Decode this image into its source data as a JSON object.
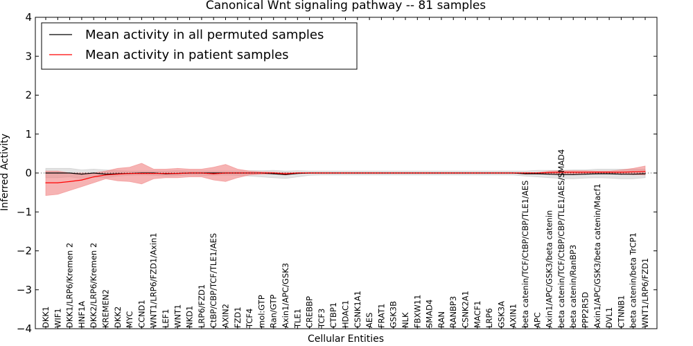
{
  "chart_data": {
    "type": "line",
    "title": "Canonical Wnt signaling pathway -- 81 samples",
    "xlabel": "Cellular Entities",
    "ylabel": "Inferred Activity",
    "ylim": [
      -4,
      4
    ],
    "yticks": [
      -4,
      -3,
      -2,
      -1,
      0,
      1,
      2,
      3,
      4
    ],
    "ytick_labels": [
      "−4",
      "−3",
      "−2",
      "−1",
      "0",
      "1",
      "2",
      "3",
      "4"
    ],
    "legend_position": "top-left",
    "categories": [
      "DKK1",
      "WIF1",
      "DKK1/LRP6/Kremen 2",
      "HNF1A",
      "DKK2/LRP6/Kremen 2",
      "KREMEN2",
      "DKK2",
      "MYC",
      "CCND1",
      "WNT1/LRP6/FZD1/Axin1",
      "LEF1",
      "WNT1",
      "NKD1",
      "LRP6/FZD1",
      "CtBP/CBP/TCF/TLE1/AES",
      "AXIN2",
      "FZD1",
      "TCF4",
      "mol:GTP",
      "Ran/GTP",
      "Axin1/APC/GSK3",
      "TLE1",
      "CREBBP",
      "TCF3",
      "CTBP1",
      "HDAC1",
      "CSNK1A1",
      "AES",
      "FRAT1",
      "GSK3B",
      "NLK",
      "FBXW11",
      "SMAD4",
      "RAN",
      "RANBP3",
      "CSNK2A1",
      "MACF1",
      "LRP6",
      "GSK3A",
      "AXIN1",
      "beta catenin/TCF/CtBP/CBP/TLE1/AES",
      "APC",
      "Axin1/APC/GSK3/beta catenin",
      "beta catenin/TCF/CtBP/CBP/TLE1/AES/SMAD4",
      "beta catenin/RanBP3",
      "PPP2R5D",
      "Axin1/APC/GSK3/beta catenin/Macf1",
      "DVL1",
      "CTNNB1",
      "beta catenin/beta TrCP1",
      "WNT1/LRP6/FZD1"
    ],
    "series": [
      {
        "name": "Mean activity in all permuted samples",
        "color": "#000000",
        "band_color": "#c0c0c0",
        "values": [
          0.0,
          0.0,
          0.0,
          -0.03,
          0.0,
          -0.03,
          -0.02,
          -0.01,
          0.0,
          0.0,
          -0.02,
          -0.01,
          0.0,
          0.0,
          0.0,
          0.0,
          0.0,
          0.0,
          0.0,
          -0.02,
          -0.04,
          -0.01,
          0.0,
          0.0,
          0.0,
          0.0,
          0.0,
          0.0,
          0.0,
          0.0,
          0.0,
          0.0,
          0.0,
          0.0,
          0.0,
          0.0,
          0.0,
          0.0,
          0.0,
          0.0,
          -0.02,
          -0.02,
          -0.03,
          -0.04,
          -0.04,
          -0.03,
          -0.02,
          -0.02,
          -0.03,
          -0.03,
          -0.02
        ],
        "band_upper": [
          0.12,
          0.12,
          0.12,
          0.08,
          0.1,
          0.08,
          0.06,
          0.05,
          0.05,
          0.05,
          0.05,
          0.06,
          0.05,
          0.05,
          0.05,
          0.05,
          0.05,
          0.06,
          0.06,
          0.07,
          0.05,
          0.06,
          0.05,
          0.05,
          0.05,
          0.05,
          0.05,
          0.05,
          0.05,
          0.05,
          0.05,
          0.05,
          0.05,
          0.05,
          0.05,
          0.05,
          0.05,
          0.05,
          0.05,
          0.05,
          0.05,
          0.07,
          0.07,
          0.07,
          0.08,
          0.08,
          0.1,
          0.1,
          0.1,
          0.1,
          0.1
        ],
        "band_lower": [
          -0.12,
          -0.12,
          -0.1,
          -0.14,
          -0.1,
          -0.12,
          -0.08,
          -0.06,
          -0.05,
          -0.06,
          -0.08,
          -0.07,
          -0.05,
          -0.06,
          -0.06,
          -0.05,
          -0.06,
          -0.08,
          -0.1,
          -0.12,
          -0.14,
          -0.1,
          -0.06,
          -0.05,
          -0.05,
          -0.05,
          -0.05,
          -0.05,
          -0.05,
          -0.05,
          -0.05,
          -0.05,
          -0.05,
          -0.05,
          -0.05,
          -0.05,
          -0.05,
          -0.05,
          -0.05,
          -0.05,
          -0.08,
          -0.1,
          -0.12,
          -0.14,
          -0.15,
          -0.13,
          -0.12,
          -0.13,
          -0.15,
          -0.15,
          -0.12
        ]
      },
      {
        "name": "Mean activity in patient samples",
        "color": "#ff0000",
        "band_color": "#f08080",
        "values": [
          -0.25,
          -0.25,
          -0.22,
          -0.18,
          -0.1,
          -0.05,
          -0.03,
          -0.01,
          -0.01,
          -0.01,
          -0.01,
          -0.01,
          0.0,
          0.0,
          -0.02,
          0.0,
          0.0,
          0.0,
          0.0,
          0.0,
          -0.02,
          0.0,
          0.0,
          0.0,
          0.0,
          0.0,
          0.0,
          0.0,
          0.0,
          0.0,
          0.0,
          0.0,
          0.0,
          0.0,
          0.0,
          0.0,
          0.0,
          0.0,
          0.0,
          0.0,
          0.0,
          0.0,
          0.01,
          0.02,
          0.02,
          0.02,
          0.02,
          0.02,
          0.02,
          0.03,
          0.04
        ],
        "band_upper": [
          0.05,
          0.05,
          0.0,
          0.0,
          0.0,
          0.05,
          0.12,
          0.15,
          0.25,
          0.1,
          0.1,
          0.12,
          0.1,
          0.1,
          0.15,
          0.22,
          0.1,
          0.05,
          0.03,
          0.02,
          0.01,
          0.01,
          0.01,
          0.01,
          0.01,
          0.01,
          0.01,
          0.01,
          0.01,
          0.01,
          0.01,
          0.01,
          0.01,
          0.01,
          0.01,
          0.01,
          0.01,
          0.01,
          0.01,
          0.01,
          0.01,
          0.01,
          0.05,
          0.06,
          0.06,
          0.06,
          0.05,
          0.05,
          0.08,
          0.12,
          0.18
        ],
        "band_lower": [
          -0.58,
          -0.55,
          -0.45,
          -0.35,
          -0.25,
          -0.15,
          -0.2,
          -0.22,
          -0.28,
          -0.15,
          -0.12,
          -0.12,
          -0.1,
          -0.1,
          -0.18,
          -0.22,
          -0.12,
          -0.05,
          -0.03,
          -0.02,
          -0.05,
          -0.01,
          -0.01,
          -0.01,
          -0.01,
          -0.01,
          -0.01,
          -0.01,
          -0.01,
          -0.01,
          -0.01,
          -0.01,
          -0.01,
          -0.01,
          -0.01,
          -0.01,
          -0.01,
          -0.01,
          -0.01,
          -0.01,
          -0.01,
          -0.01,
          -0.02,
          -0.02,
          -0.02,
          -0.02,
          -0.02,
          -0.02,
          -0.03,
          -0.04,
          -0.05
        ]
      }
    ]
  }
}
